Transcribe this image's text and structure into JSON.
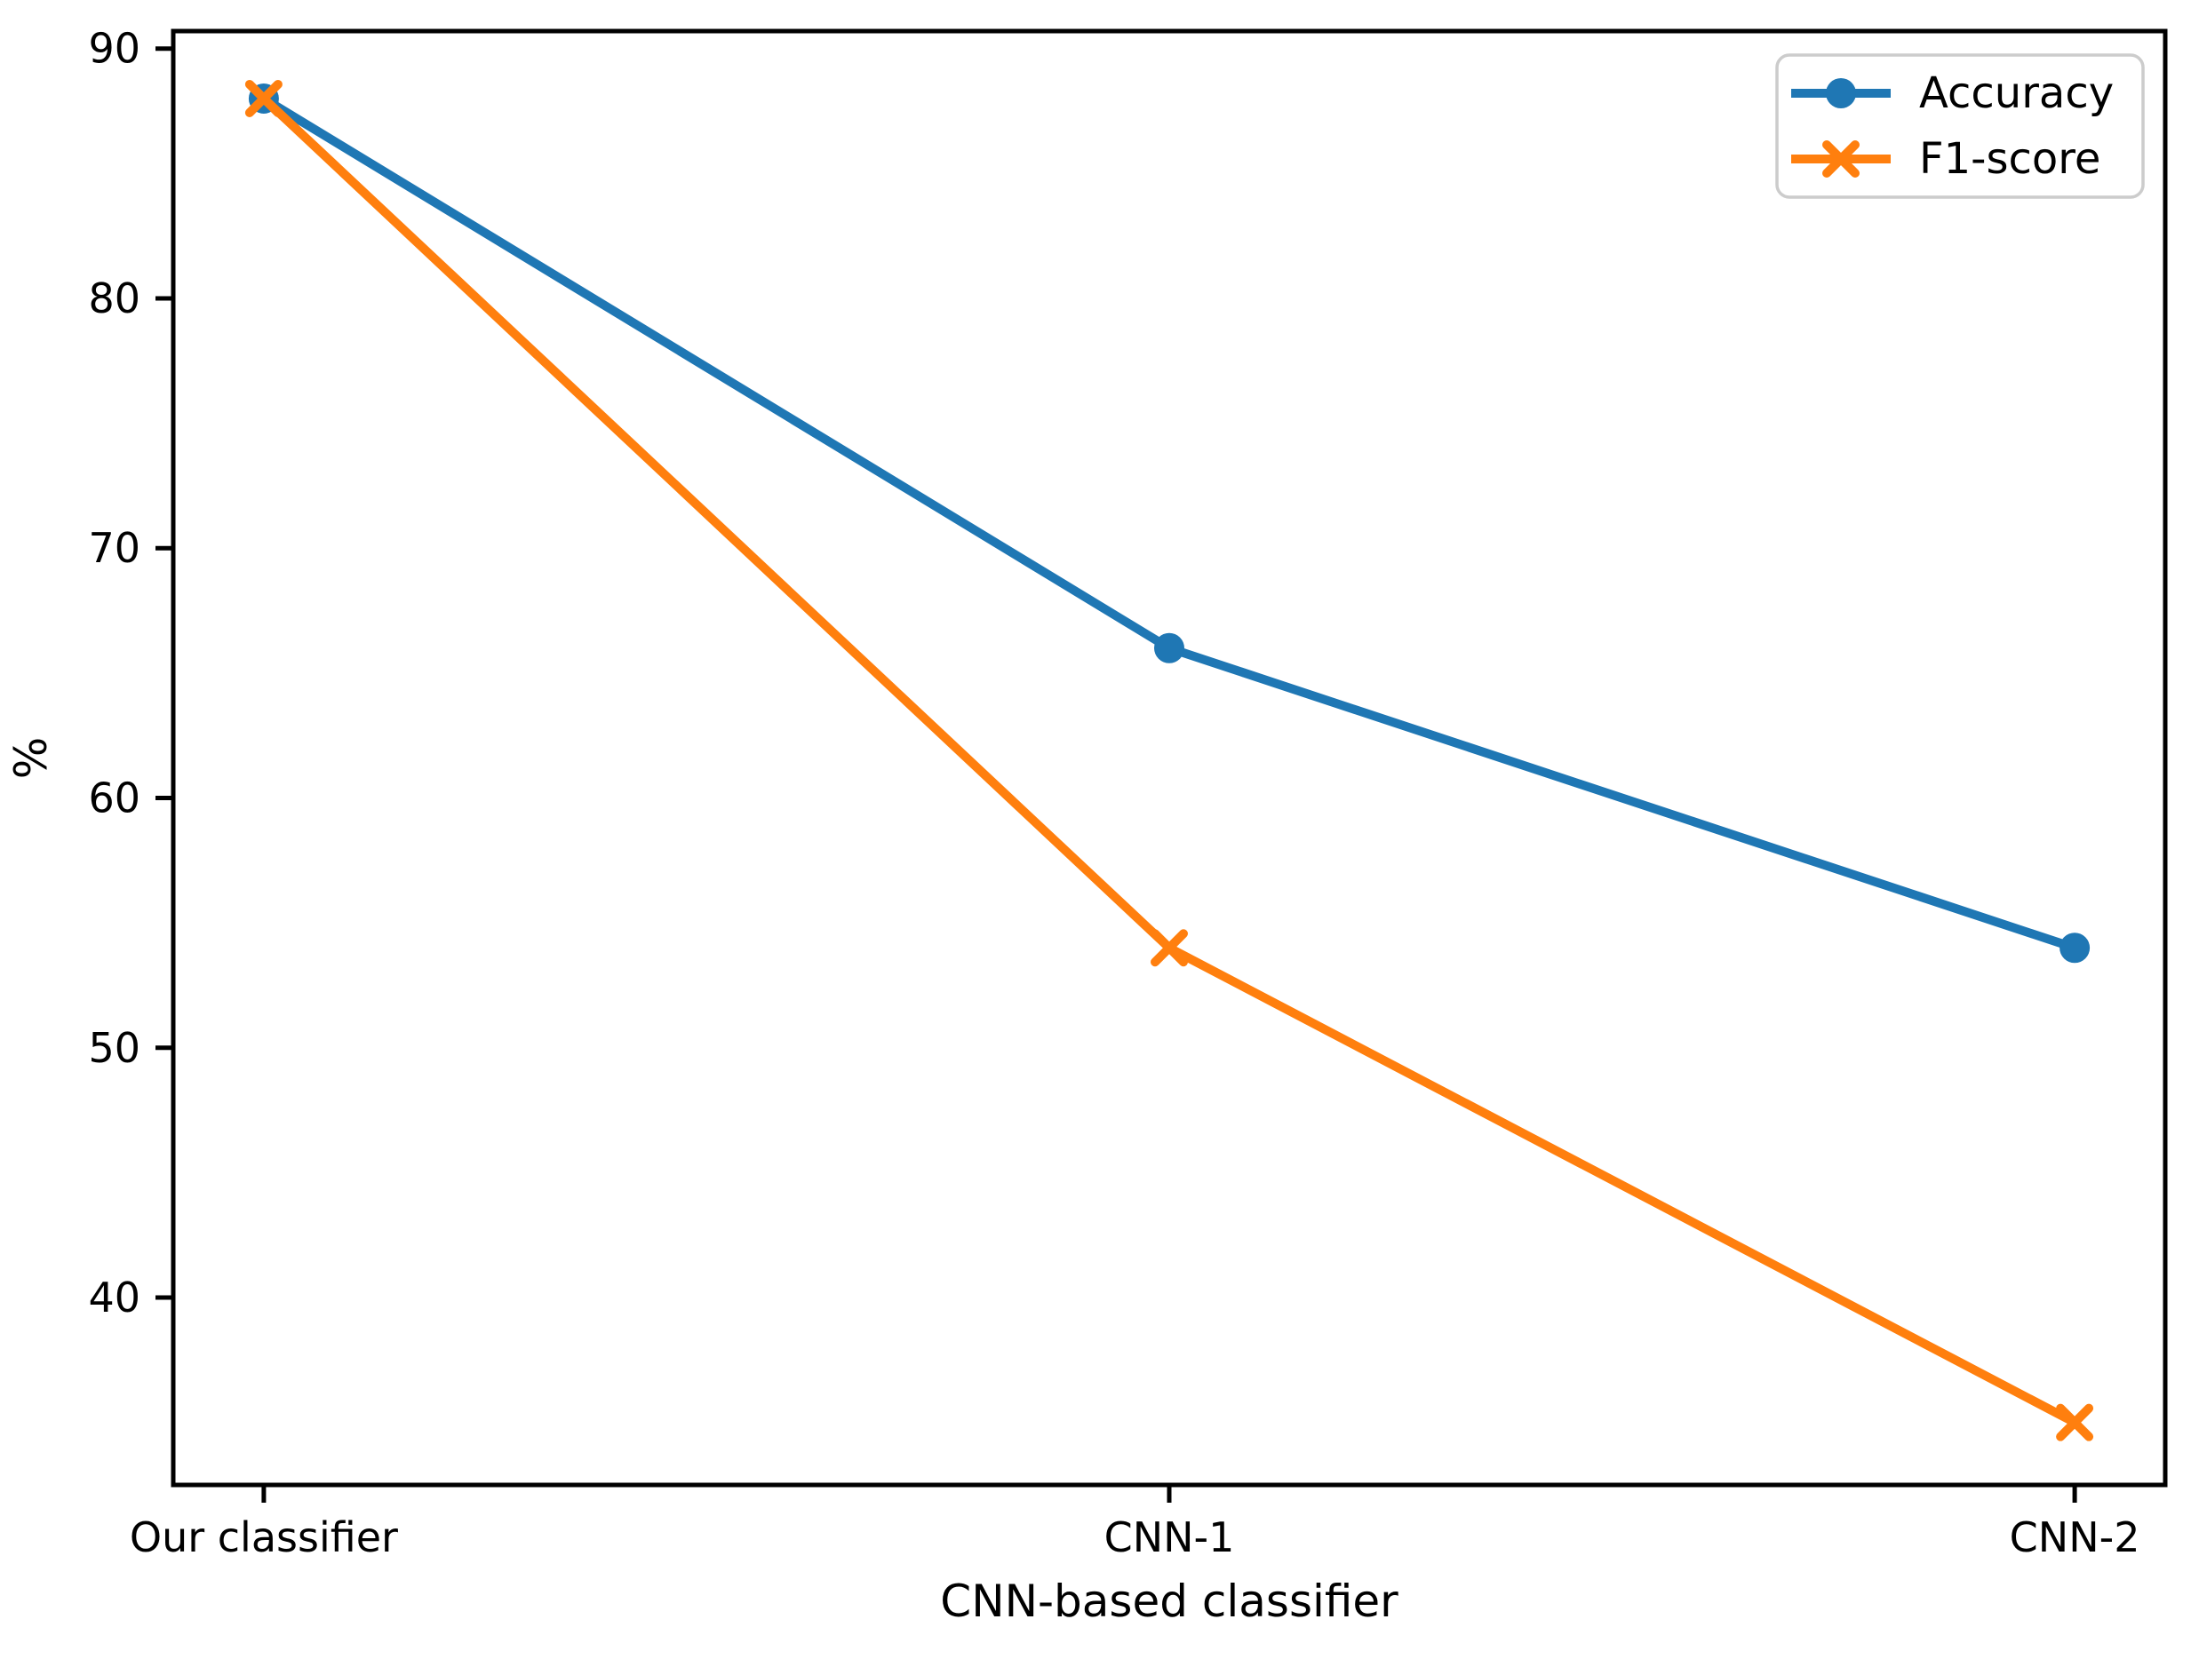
{
  "chart_data": {
    "type": "line",
    "categories": [
      "Our classifier",
      "CNN-1",
      "CNN-2"
    ],
    "x": [
      0,
      1,
      2
    ],
    "series": [
      {
        "name": "Accuracy",
        "values": [
          88,
          66,
          54
        ],
        "color": "#1f77b4",
        "marker": "circle"
      },
      {
        "name": "F1-score",
        "values": [
          88,
          54,
          35
        ],
        "color": "#ff7f0e",
        "marker": "x"
      }
    ],
    "title": "",
    "xlabel": "CNN-based classifier",
    "ylabel": "%",
    "yticks": [
      40,
      50,
      60,
      70,
      80,
      90
    ],
    "ylim": [
      32.5,
      90.7
    ],
    "xlim": [
      -0.1,
      2.1
    ],
    "grid": false,
    "legend": {
      "position": "upper right",
      "entries": [
        "Accuracy",
        "F1-score"
      ]
    }
  },
  "style": {
    "axis_color": "#000000",
    "background": "#ffffff",
    "legend_border": "#cccccc",
    "legend_fill": "#ffffff"
  }
}
